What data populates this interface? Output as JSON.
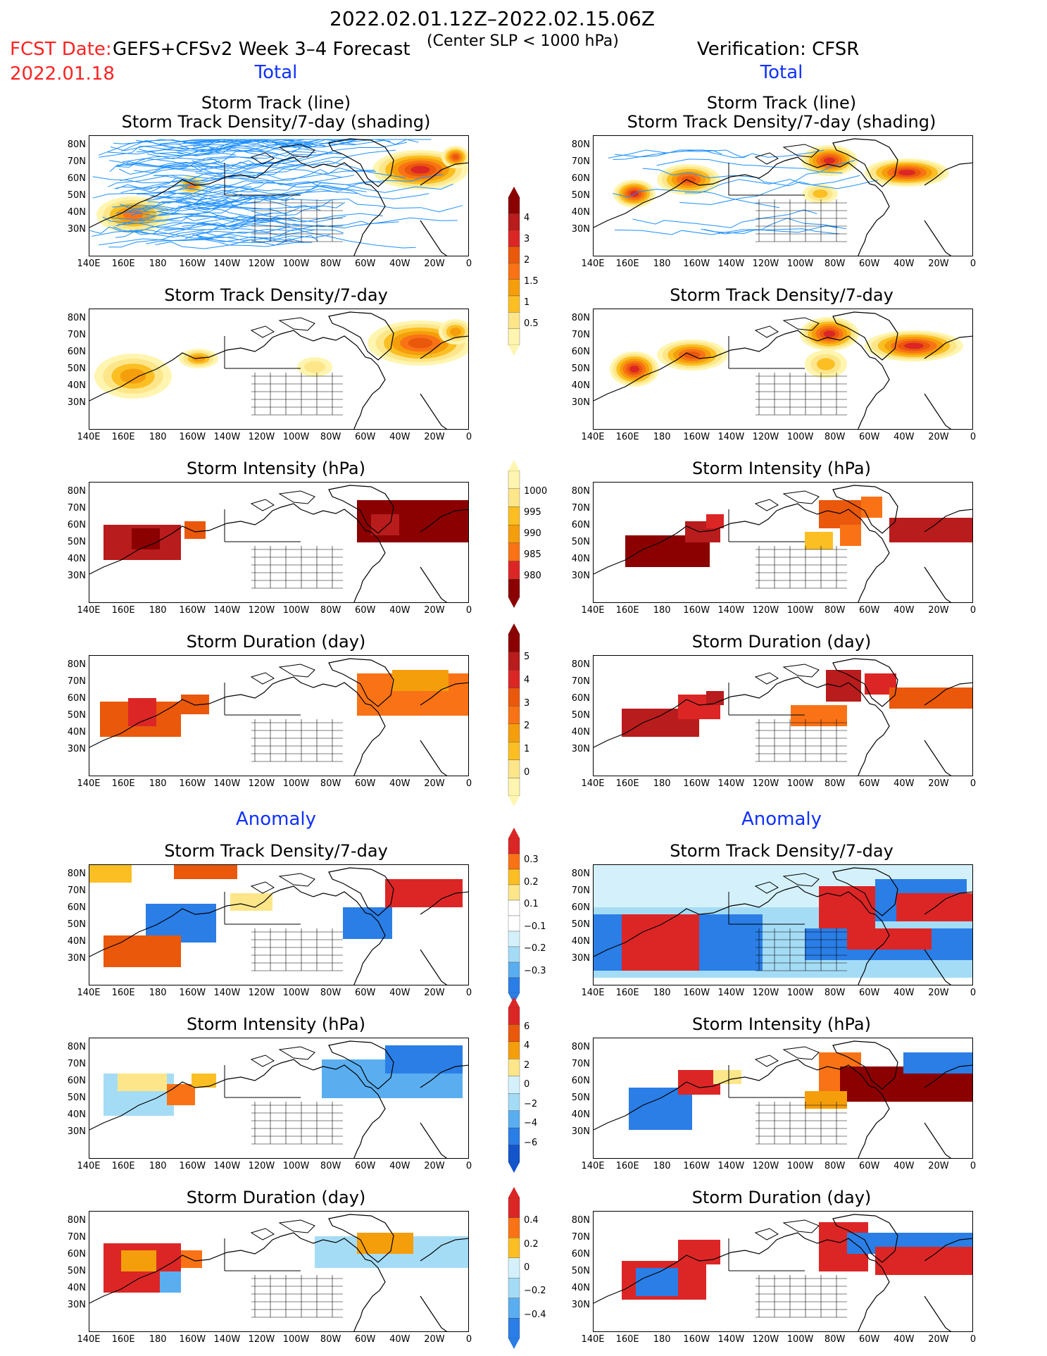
{
  "header": {
    "date_range": "2022.02.01.12Z–2022.02.15.06Z",
    "fcst_label": "FCST Date:",
    "model": "GEFS+CFSv2 Week 3–4 Forecast",
    "center_slp": "(Center SLP < 1000 hPa)",
    "verification": "Verification: CFSR",
    "fcst_date": "2022.01.18"
  },
  "sections": {
    "total": "Total",
    "anomaly": "Anomaly"
  },
  "panel_titles": {
    "track_line": "Storm Track (line)",
    "track_density_shading": "Storm Track Density/7-day (shading)",
    "track_density": "Storm Track Density/7-day",
    "intensity": "Storm Intensity (hPa)",
    "duration": "Storm Duration (day)"
  },
  "axes": {
    "lat_ticks": [
      "80N",
      "70N",
      "60N",
      "50N",
      "40N",
      "30N"
    ],
    "lon_ticks": [
      "140E",
      "160E",
      "180",
      "160W",
      "140W",
      "120W",
      "100W",
      "80W",
      "60W",
      "40W",
      "20W",
      "0"
    ]
  },
  "colorbars": {
    "density_total": [
      "4",
      "3",
      "2",
      "1.5",
      "1",
      "0.5"
    ],
    "intensity_total": [
      "1000",
      "995",
      "990",
      "985",
      "980"
    ],
    "duration_total": [
      "5",
      "4",
      "3",
      "2",
      "1",
      "0"
    ],
    "density_anom": [
      "0.3",
      "0.2",
      "0.1",
      "−0.1",
      "−0.2",
      "−0.3"
    ],
    "intensity_anom": [
      "6",
      "4",
      "2",
      "0",
      "−2",
      "−4",
      "−6"
    ],
    "duration_anom": [
      "0.4",
      "0.2",
      "0",
      "−0.2",
      "−0.4"
    ]
  },
  "colors": {
    "warm": [
      "#fff5b0",
      "#fde68a",
      "#fbbf24",
      "#f59e0b",
      "#f97316",
      "#ea580c",
      "#dc2626",
      "#b91c1c",
      "#8b0000"
    ],
    "cool": [
      "#d4f1fb",
      "#a5dcf5",
      "#5aaef0",
      "#2a7ee6",
      "#1555cc"
    ],
    "track": "#1e90ff"
  },
  "chart_data": [
    {
      "type": "heatmap",
      "panel": "forecast-track",
      "title": "Storm Track (line) / Storm Track Density/7-day (shading)"
    },
    {
      "type": "heatmap",
      "panel": "verification-track",
      "title": "Storm Track (line) / Storm Track Density/7-day (shading)"
    },
    {
      "type": "heatmap",
      "panel": "forecast-density",
      "title": "Storm Track Density/7-day"
    },
    {
      "type": "heatmap",
      "panel": "verification-density",
      "title": "Storm Track Density/7-day"
    },
    {
      "type": "heatmap",
      "panel": "forecast-intensity",
      "title": "Storm Intensity (hPa)"
    },
    {
      "type": "heatmap",
      "panel": "verification-intensity",
      "title": "Storm Intensity (hPa)"
    },
    {
      "type": "heatmap",
      "panel": "forecast-duration",
      "title": "Storm Duration (day)"
    },
    {
      "type": "heatmap",
      "panel": "verification-duration",
      "title": "Storm Duration (day)"
    },
    {
      "type": "heatmap",
      "panel": "forecast-density-anom",
      "title": "Storm Track Density/7-day"
    },
    {
      "type": "heatmap",
      "panel": "verification-density-anom",
      "title": "Storm Track Density/7-day"
    },
    {
      "type": "heatmap",
      "panel": "forecast-intensity-anom",
      "title": "Storm Intensity (hPa)"
    },
    {
      "type": "heatmap",
      "panel": "verification-intensity-anom",
      "title": "Storm Intensity (hPa)"
    },
    {
      "type": "heatmap",
      "panel": "forecast-duration-anom",
      "title": "Storm Duration (day)"
    },
    {
      "type": "heatmap",
      "panel": "verification-duration-anom",
      "title": "Storm Duration (day)"
    }
  ]
}
